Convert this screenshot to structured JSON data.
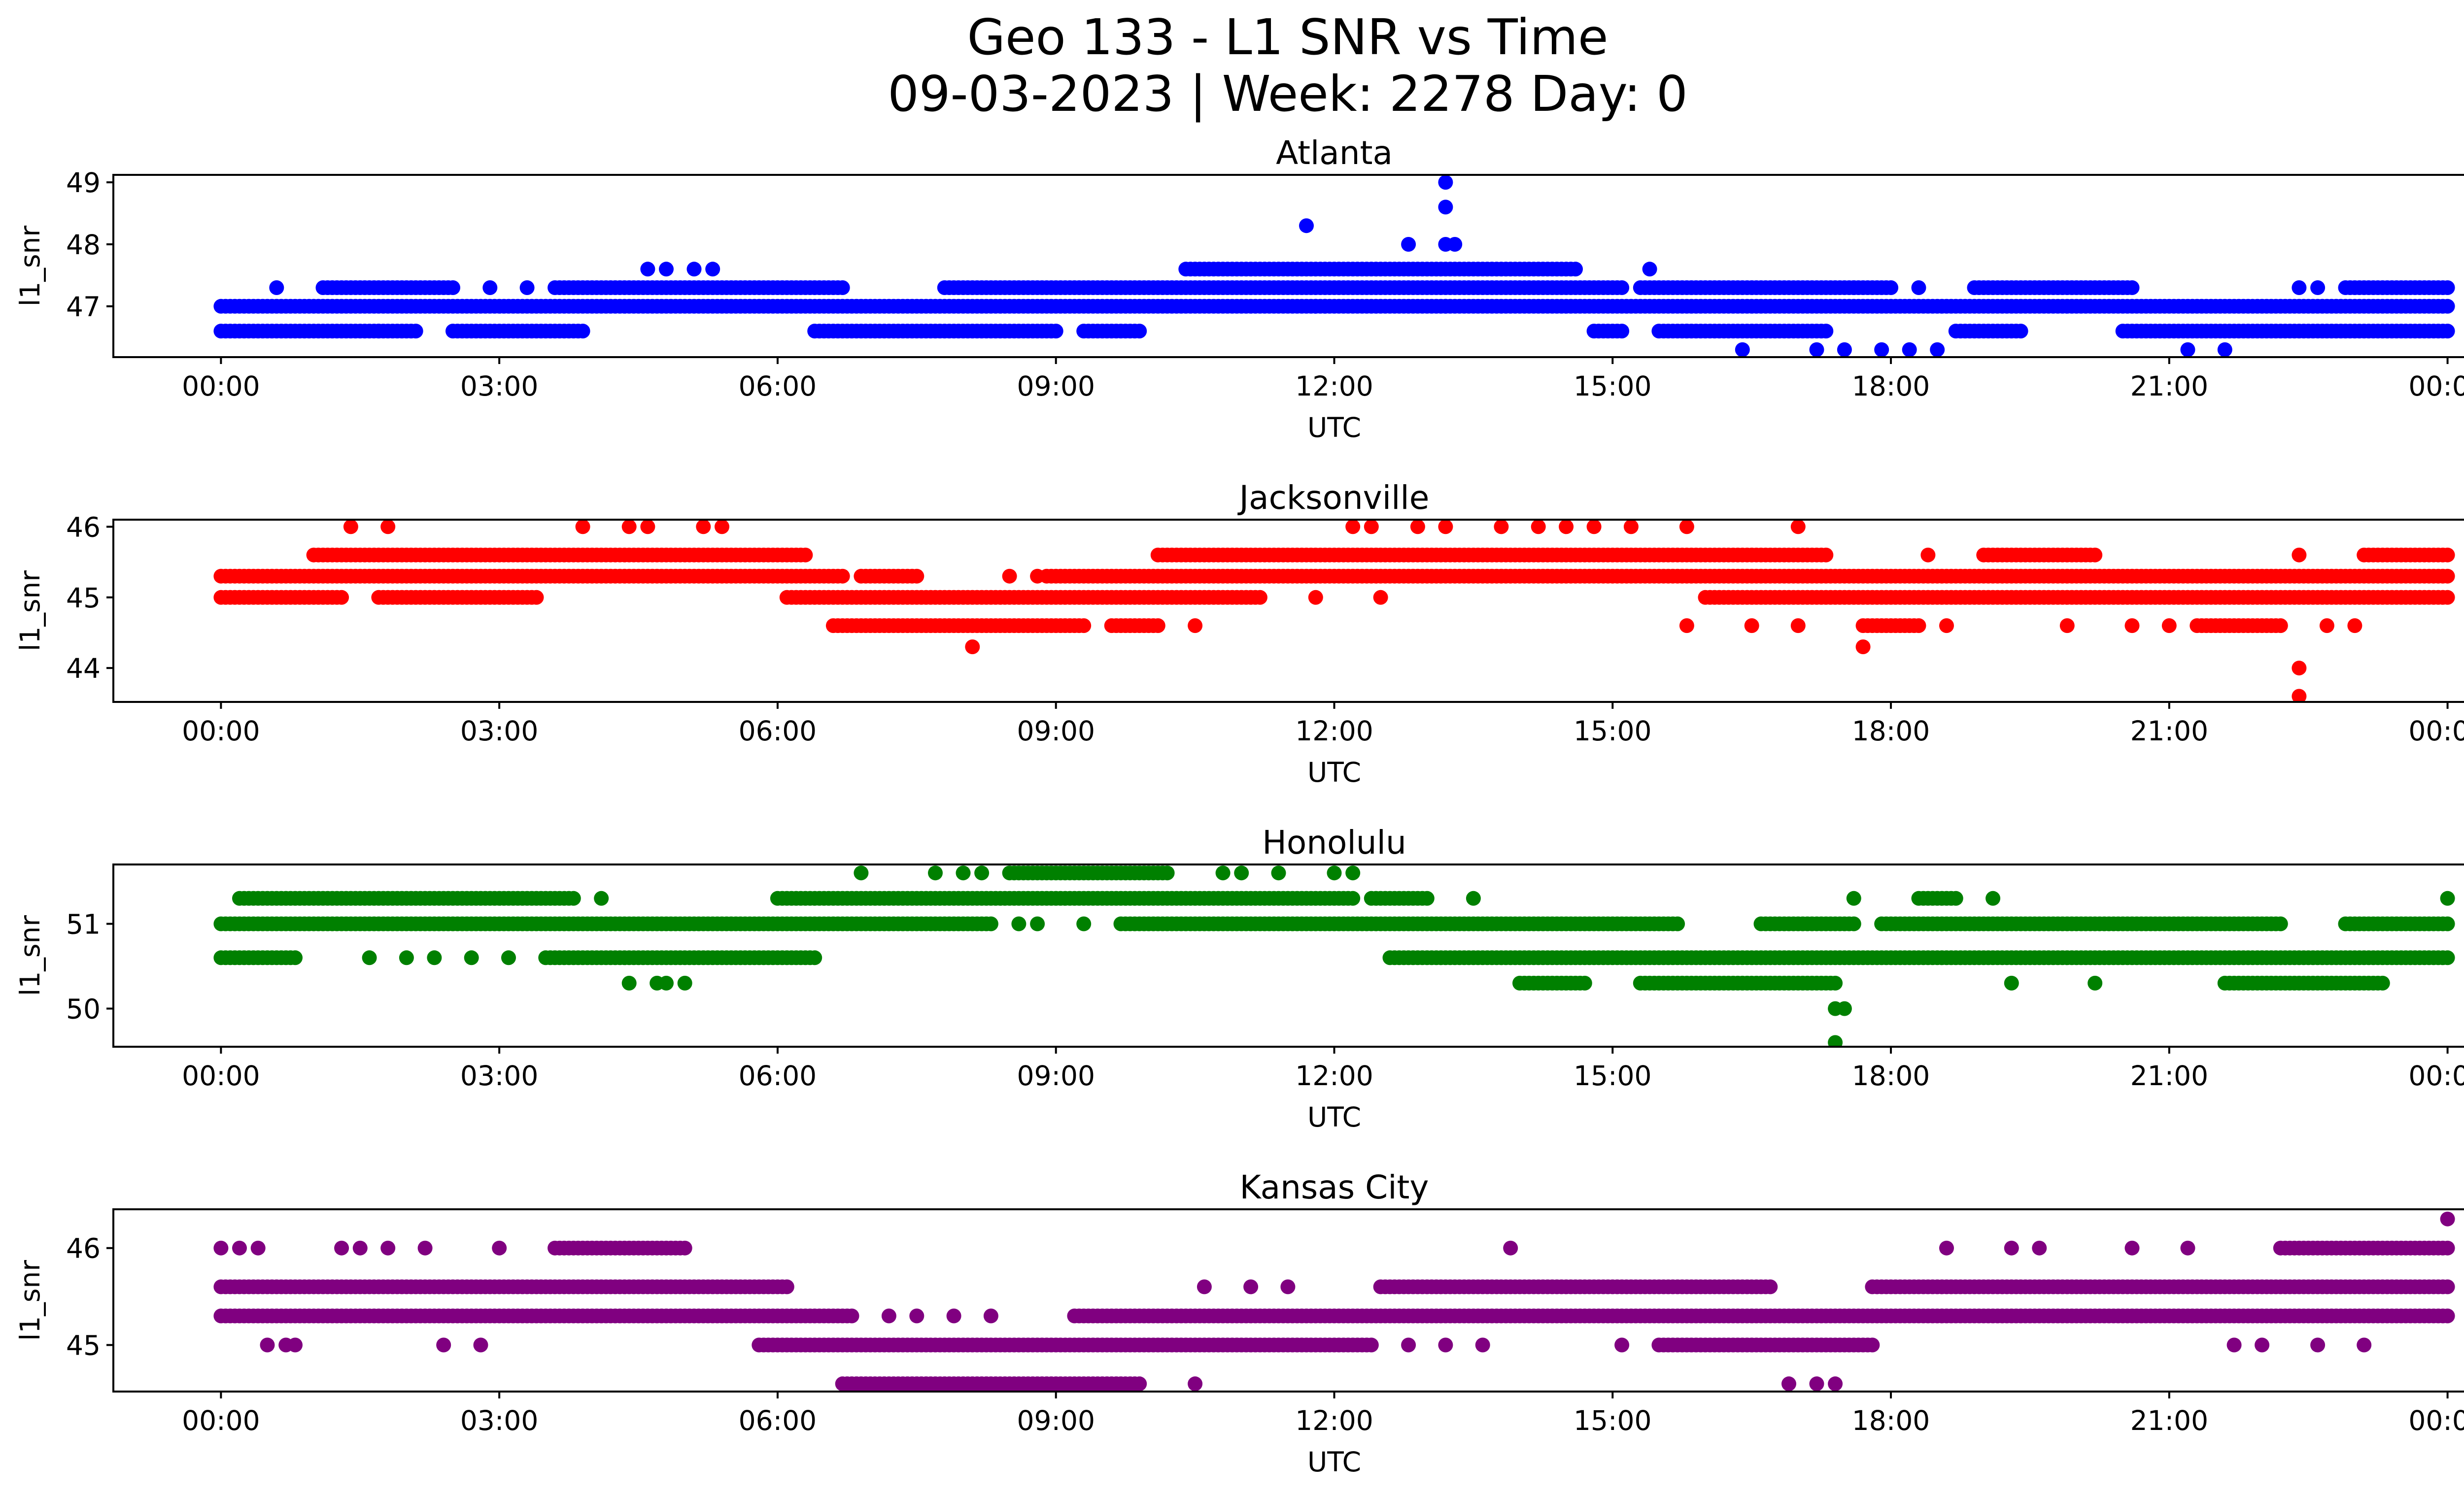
{
  "title_line1": "Geo 133 - L1 SNR vs Time",
  "title_line2": "09-03-2023 | Week: 2278 Day: 0",
  "chart_data": [
    {
      "type": "scatter",
      "title": "Atlanta",
      "xlabel": "UTC",
      "ylabel": "l1_snr",
      "color": "#0000ff",
      "x_ticks": [
        "00:00",
        "03:00",
        "06:00",
        "09:00",
        "12:00",
        "15:00",
        "18:00",
        "21:00",
        "00:00"
      ],
      "x_range_hours": [
        -1.16,
        25.16
      ],
      "y_ticks": [
        47,
        48,
        49
      ],
      "ylim": [
        46.18,
        49.12
      ],
      "bands": [
        {
          "y": 46.6,
          "segments": [
            [
              0.0,
              2.1
            ],
            [
              2.5,
              3.9
            ],
            [
              6.4,
              9.0
            ],
            [
              9.3,
              9.9
            ],
            [
              14.8,
              15.1
            ],
            [
              15.5,
              17.3
            ],
            [
              18.7,
              19.4
            ],
            [
              20.5,
              24.0
            ]
          ]
        },
        {
          "y": 47.0,
          "segments": [
            [
              0.0,
              24.0
            ]
          ]
        },
        {
          "y": 47.3,
          "segments": [
            [
              1.1,
              2.5
            ],
            [
              3.6,
              6.7
            ],
            [
              7.8,
              15.1
            ],
            [
              15.3,
              18.0
            ],
            [
              18.9,
              20.6
            ],
            [
              22.9,
              24.0
            ]
          ]
        },
        {
          "y": 47.6,
          "segments": [
            [
              10.4,
              14.6
            ]
          ]
        }
      ],
      "points": [
        [
          0.6,
          47.3
        ],
        [
          1.7,
          46.6
        ],
        [
          2.9,
          47.3
        ],
        [
          3.3,
          47.3
        ],
        [
          4.6,
          47.6
        ],
        [
          4.8,
          47.6
        ],
        [
          5.1,
          47.6
        ],
        [
          5.3,
          47.6
        ],
        [
          11.7,
          48.3
        ],
        [
          12.8,
          48.0
        ],
        [
          13.2,
          49.0
        ],
        [
          13.2,
          48.6
        ],
        [
          13.2,
          48.0
        ],
        [
          13.3,
          48.0
        ],
        [
          13.2,
          47.0
        ],
        [
          11.8,
          47.0
        ],
        [
          11.9,
          47.0
        ],
        [
          15.4,
          47.6
        ],
        [
          15.8,
          46.6
        ],
        [
          16.4,
          46.3
        ],
        [
          17.2,
          46.3
        ],
        [
          17.5,
          46.3
        ],
        [
          17.9,
          46.3
        ],
        [
          18.2,
          46.3
        ],
        [
          18.5,
          46.3
        ],
        [
          17.6,
          47.3
        ],
        [
          18.3,
          47.3
        ],
        [
          21.2,
          46.3
        ],
        [
          21.6,
          46.3
        ],
        [
          22.4,
          47.3
        ],
        [
          22.6,
          47.3
        ]
      ]
    },
    {
      "type": "scatter",
      "title": "Jacksonville",
      "xlabel": "UTC",
      "ylabel": "l1_snr",
      "color": "#ff0000",
      "x_ticks": [
        "00:00",
        "03:00",
        "06:00",
        "09:00",
        "12:00",
        "15:00",
        "18:00",
        "21:00",
        "00:00"
      ],
      "x_range_hours": [
        -1.16,
        25.16
      ],
      "y_ticks": [
        44,
        45,
        46
      ],
      "ylim": [
        43.52,
        46.1
      ],
      "bands": [
        {
          "y": 44.6,
          "segments": [
            [
              6.6,
              9.3
            ],
            [
              9.6,
              10.1
            ],
            [
              17.7,
              18.3
            ],
            [
              21.3,
              22.2
            ]
          ]
        },
        {
          "y": 45.0,
          "segments": [
            [
              0.0,
              1.3
            ],
            [
              1.7,
              3.4
            ],
            [
              6.1,
              11.2
            ],
            [
              16.0,
              24.0
            ]
          ]
        },
        {
          "y": 45.3,
          "segments": [
            [
              0.0,
              6.7
            ],
            [
              6.9,
              7.5
            ],
            [
              8.9,
              24.0
            ]
          ]
        },
        {
          "y": 45.6,
          "segments": [
            [
              1.0,
              6.3
            ],
            [
              10.1,
              17.3
            ],
            [
              19.0,
              20.2
            ],
            [
              23.1,
              24.0
            ]
          ]
        }
      ],
      "points": [
        [
          1.4,
          46.0
        ],
        [
          1.8,
          46.0
        ],
        [
          3.9,
          46.0
        ],
        [
          4.4,
          46.0
        ],
        [
          4.6,
          46.0
        ],
        [
          5.2,
          46.0
        ],
        [
          5.4,
          46.0
        ],
        [
          8.1,
          44.3
        ],
        [
          8.5,
          45.3
        ],
        [
          8.8,
          45.3
        ],
        [
          10.5,
          44.6
        ],
        [
          11.8,
          45.0
        ],
        [
          12.5,
          45.0
        ],
        [
          12.2,
          46.0
        ],
        [
          12.4,
          46.0
        ],
        [
          12.9,
          46.0
        ],
        [
          13.2,
          46.0
        ],
        [
          13.8,
          46.0
        ],
        [
          14.2,
          46.0
        ],
        [
          14.5,
          46.0
        ],
        [
          14.8,
          46.0
        ],
        [
          15.2,
          46.0
        ],
        [
          15.8,
          46.0
        ],
        [
          17.0,
          46.0
        ],
        [
          15.8,
          44.6
        ],
        [
          16.5,
          44.6
        ],
        [
          17.0,
          44.6
        ],
        [
          17.7,
          44.3
        ],
        [
          18.6,
          44.6
        ],
        [
          18.4,
          45.6
        ],
        [
          19.9,
          44.6
        ],
        [
          20.6,
          44.6
        ],
        [
          21.0,
          44.6
        ],
        [
          22.4,
          45.6
        ],
        [
          22.4,
          44.0
        ],
        [
          22.4,
          43.6
        ],
        [
          22.7,
          44.6
        ],
        [
          23.0,
          44.6
        ]
      ]
    },
    {
      "type": "scatter",
      "title": "Honolulu",
      "xlabel": "UTC",
      "ylabel": "l1_snr",
      "color": "#008000",
      "x_ticks": [
        "00:00",
        "03:00",
        "06:00",
        "09:00",
        "12:00",
        "15:00",
        "18:00",
        "21:00",
        "00:00"
      ],
      "x_range_hours": [
        -1.16,
        25.16
      ],
      "y_ticks": [
        50,
        51
      ],
      "ylim": [
        49.55,
        51.7
      ],
      "bands": [
        {
          "y": 50.3,
          "segments": [
            [
              14.0,
              14.7
            ],
            [
              15.3,
              17.4
            ],
            [
              21.6,
              23.3
            ]
          ]
        },
        {
          "y": 50.6,
          "segments": [
            [
              0.0,
              0.8
            ],
            [
              3.5,
              6.4
            ],
            [
              12.6,
              24.0
            ]
          ]
        },
        {
          "y": 51.0,
          "segments": [
            [
              0.0,
              8.3
            ],
            [
              9.7,
              15.7
            ],
            [
              16.6,
              17.6
            ],
            [
              17.9,
              22.2
            ],
            [
              22.9,
              24.0
            ]
          ]
        },
        {
          "y": 51.3,
          "segments": [
            [
              0.2,
              3.8
            ],
            [
              6.0,
              12.2
            ],
            [
              12.4,
              13.0
            ],
            [
              18.3,
              18.7
            ]
          ]
        },
        {
          "y": 51.6,
          "segments": [
            [
              8.5,
              10.2
            ]
          ]
        }
      ],
      "points": [
        [
          1.6,
          50.6
        ],
        [
          2.0,
          50.6
        ],
        [
          2.3,
          50.6
        ],
        [
          2.7,
          50.6
        ],
        [
          3.1,
          50.6
        ],
        [
          4.1,
          51.3
        ],
        [
          4.4,
          50.3
        ],
        [
          4.7,
          50.3
        ],
        [
          4.8,
          50.3
        ],
        [
          5.0,
          50.3
        ],
        [
          6.9,
          51.6
        ],
        [
          7.7,
          51.6
        ],
        [
          8.0,
          51.6
        ],
        [
          8.2,
          51.6
        ],
        [
          10.8,
          51.6
        ],
        [
          11.0,
          51.6
        ],
        [
          11.4,
          51.6
        ],
        [
          12.0,
          51.6
        ],
        [
          12.2,
          51.6
        ],
        [
          8.6,
          51.0
        ],
        [
          8.8,
          51.0
        ],
        [
          9.3,
          51.0
        ],
        [
          13.5,
          51.3
        ],
        [
          17.4,
          50.0
        ],
        [
          17.4,
          49.6
        ],
        [
          17.5,
          50.0
        ],
        [
          17.6,
          51.3
        ],
        [
          19.1,
          51.3
        ],
        [
          19.3,
          50.3
        ],
        [
          20.2,
          50.3
        ],
        [
          24.0,
          51.3
        ]
      ]
    },
    {
      "type": "scatter",
      "title": "Kansas City",
      "xlabel": "UTC",
      "ylabel": "l1_snr",
      "color": "#800080",
      "x_ticks": [
        "00:00",
        "03:00",
        "06:00",
        "09:00",
        "12:00",
        "15:00",
        "18:00",
        "21:00",
        "00:00"
      ],
      "x_range_hours": [
        -1.16,
        25.16
      ],
      "y_ticks": [
        45,
        46
      ],
      "ylim": [
        44.52,
        46.4
      ],
      "bands": [
        {
          "y": 44.6,
          "segments": [
            [
              6.7,
              9.9
            ]
          ]
        },
        {
          "y": 45.0,
          "segments": [
            [
              5.8,
              12.4
            ],
            [
              15.5,
              17.8
            ]
          ]
        },
        {
          "y": 45.3,
          "segments": [
            [
              0.0,
              6.8
            ],
            [
              9.2,
              24.0
            ]
          ]
        },
        {
          "y": 45.6,
          "segments": [
            [
              0.0,
              6.1
            ],
            [
              12.5,
              16.7
            ],
            [
              17.8,
              24.0
            ]
          ]
        },
        {
          "y": 46.0,
          "segments": [
            [
              3.6,
              5.0
            ],
            [
              22.2,
              24.0
            ]
          ]
        }
      ],
      "points": [
        [
          0.0,
          46.0
        ],
        [
          0.2,
          46.0
        ],
        [
          0.4,
          46.0
        ],
        [
          0.5,
          45.0
        ],
        [
          0.7,
          45.0
        ],
        [
          0.8,
          45.0
        ],
        [
          1.3,
          46.0
        ],
        [
          1.5,
          46.0
        ],
        [
          1.8,
          46.0
        ],
        [
          2.2,
          46.0
        ],
        [
          2.4,
          45.0
        ],
        [
          2.8,
          45.0
        ],
        [
          3.0,
          46.0
        ],
        [
          7.2,
          45.3
        ],
        [
          7.5,
          45.3
        ],
        [
          7.9,
          45.3
        ],
        [
          8.3,
          45.3
        ],
        [
          10.5,
          44.6
        ],
        [
          10.6,
          45.6
        ],
        [
          11.1,
          45.6
        ],
        [
          11.5,
          45.6
        ],
        [
          12.8,
          45.0
        ],
        [
          13.2,
          45.0
        ],
        [
          13.6,
          45.0
        ],
        [
          13.9,
          46.0
        ],
        [
          15.1,
          45.0
        ],
        [
          16.9,
          44.6
        ],
        [
          17.2,
          44.6
        ],
        [
          17.4,
          44.6
        ],
        [
          18.6,
          46.0
        ],
        [
          19.3,
          46.0
        ],
        [
          19.6,
          46.0
        ],
        [
          20.6,
          46.0
        ],
        [
          21.2,
          46.0
        ],
        [
          21.7,
          45.0
        ],
        [
          22.0,
          45.0
        ],
        [
          22.6,
          45.0
        ],
        [
          23.1,
          45.0
        ],
        [
          24.0,
          46.3
        ]
      ]
    }
  ]
}
